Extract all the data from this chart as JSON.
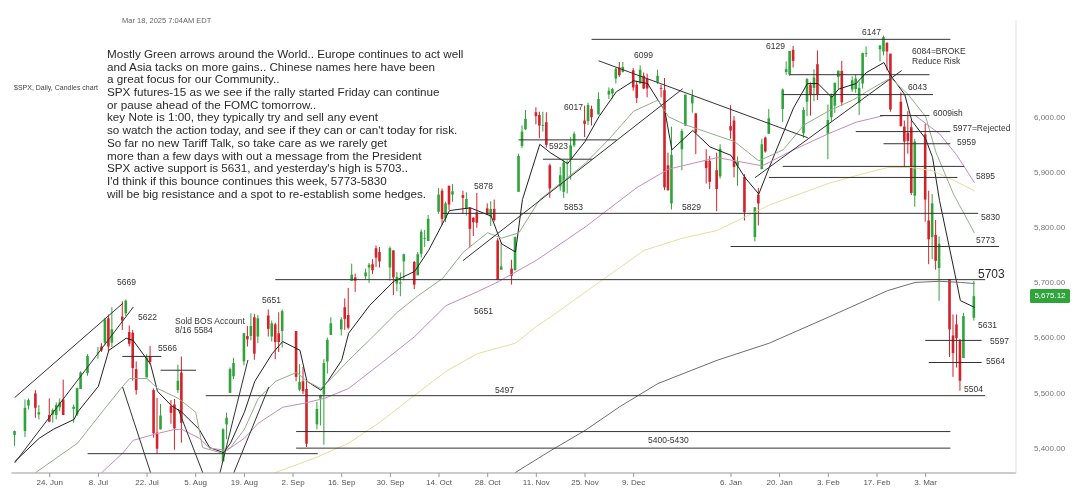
{
  "chart_data": {
    "type": "candlestick",
    "title": "$SPX, Daily, Candles chart",
    "subtitle": "Mar 18, 2025 7:04AM EDT",
    "annotations": [
      "Mostly Green arrows around the World.. Europe continues to act well",
      "and Asia tacks on more gains.. Chinese names here have been",
      "a great focus for our Community..",
      "SPX futures-15 as we see if the rally started Friday can continue",
      "or pause ahead of the FOMC tomorrow..",
      "key Note is 1:00, they typically try and sell any event",
      "so watch the action today, and see if they can or can't today for risk.",
      "So far no new Tariff Talk, so take care as we rarely get",
      "more than a few days with out a message from the President",
      "SPX active support is 5631, and yesterday's high is 5703..",
      "I'd think if this bounce continues this week, 5773-5830",
      "will be big resistance and a spot to re-establish some hedges.",
      "6147",
      "6129",
      "6084=BROKE",
      "Reduce Risk",
      "6043",
      "6009ish",
      "5977=Rejected",
      "5959",
      "5895",
      "5830",
      "5773",
      "5703",
      "5631",
      "5597",
      "5564",
      "5504",
      "6099",
      "6017",
      "5923",
      "5878",
      "5853",
      "5829",
      "5651",
      "5497",
      "5400-5430",
      "5669",
      "5622",
      "5566",
      "Sold BOS Account",
      "8/16 5584",
      "5651",
      "5,675.12"
    ],
    "x": [
      "2024-06-14",
      "2024-06-17",
      "2024-06-18",
      "2024-06-20",
      "2024-06-21",
      "2024-06-24",
      "2024-06-25",
      "2024-06-26",
      "2024-06-27",
      "2024-06-28",
      "2024-07-01",
      "2024-07-02",
      "2024-07-03",
      "2024-07-05",
      "2024-07-08",
      "2024-07-09",
      "2024-07-10",
      "2024-07-11",
      "2024-07-12",
      "2024-07-15",
      "2024-07-16",
      "2024-07-17",
      "2024-07-18",
      "2024-07-19",
      "2024-07-22",
      "2024-07-23",
      "2024-07-24",
      "2024-07-25",
      "2024-07-26",
      "2024-07-29",
      "2024-07-30",
      "2024-07-31",
      "2024-08-01",
      "2024-08-13",
      "2024-08-14",
      "2024-08-15",
      "2024-08-16",
      "2024-08-19",
      "2024-08-20",
      "2024-08-21",
      "2024-08-22",
      "2024-08-23",
      "2024-08-26",
      "2024-08-27",
      "2024-08-28",
      "2024-08-29",
      "2024-08-30",
      "2024-09-03",
      "2024-09-04",
      "2024-09-05",
      "2024-09-06",
      "2024-09-09",
      "2024-09-10",
      "2024-09-11",
      "2024-09-12",
      "2024-09-13",
      "2024-09-16",
      "2024-09-17",
      "2024-09-18",
      "2024-09-19",
      "2024-09-20",
      "2024-09-23",
      "2024-09-24",
      "2024-09-25",
      "2024-09-26",
      "2024-09-27",
      "2024-09-30",
      "2024-10-01",
      "2024-10-02",
      "2024-10-03",
      "2024-10-04",
      "2024-10-07",
      "2024-10-08",
      "2024-10-09",
      "2024-10-10",
      "2024-10-11",
      "2024-10-14",
      "2024-10-15",
      "2024-10-16",
      "2024-10-17",
      "2024-10-18",
      "2024-10-21",
      "2024-10-22",
      "2024-10-23",
      "2024-10-24",
      "2024-10-25",
      "2024-10-28",
      "2024-10-29",
      "2024-10-30",
      "2024-10-31",
      "2024-11-01",
      "2024-11-04",
      "2024-11-05",
      "2024-11-06",
      "2024-11-07",
      "2024-11-08",
      "2024-11-11",
      "2024-11-12",
      "2024-11-13",
      "2024-11-14",
      "2024-11-15",
      "2024-11-18",
      "2024-11-19",
      "2024-11-20",
      "2024-11-21",
      "2024-11-22",
      "2024-11-25",
      "2024-11-26",
      "2024-11-27",
      "2024-11-29",
      "2024-12-02",
      "2024-12-03",
      "2024-12-04",
      "2024-12-05",
      "2024-12-06",
      "2024-12-09",
      "2024-12-10",
      "2024-12-11",
      "2024-12-12",
      "2024-12-13",
      "2024-12-16",
      "2024-12-17",
      "2024-12-18",
      "2024-12-19",
      "2024-12-20",
      "2024-12-23",
      "2024-12-24",
      "2024-12-26",
      "2024-12-27",
      "2024-12-30",
      "2024-12-31",
      "2025-01-02",
      "2025-01-03",
      "2025-01-06",
      "2025-01-07",
      "2025-01-08",
      "2025-01-10",
      "2025-01-13",
      "2025-01-14",
      "2025-01-15",
      "2025-01-16",
      "2025-01-17",
      "2025-01-21",
      "2025-01-22",
      "2025-01-23",
      "2025-01-24",
      "2025-01-27",
      "2025-01-28",
      "2025-01-29",
      "2025-01-30",
      "2025-01-31",
      "2025-02-03",
      "2025-02-04",
      "2025-02-05",
      "2025-02-06",
      "2025-02-07",
      "2025-02-10",
      "2025-02-11",
      "2025-02-12",
      "2025-02-13",
      "2025-02-14",
      "2025-02-18",
      "2025-02-19",
      "2025-02-20",
      "2025-02-21",
      "2025-02-24",
      "2025-02-25",
      "2025-02-26",
      "2025-02-27",
      "2025-02-28",
      "2025-03-03",
      "2025-03-04",
      "2025-03-05",
      "2025-03-06",
      "2025-03-07",
      "2025-03-10",
      "2025-03-11",
      "2025-03-12",
      "2025-03-13",
      "2025-03-14",
      "2025-03-17"
    ],
    "ohlc": [
      [
        5424,
        5432,
        5404,
        5431
      ],
      [
        5431,
        5488,
        5420,
        5473
      ],
      [
        5477,
        5490,
        5470,
        5487
      ],
      [
        5499,
        5505,
        5455,
        5473
      ],
      [
        5461,
        5478,
        5452,
        5465
      ],
      [
        5460,
        5490,
        5447,
        5448
      ],
      [
        5461,
        5472,
        5446,
        5469
      ],
      [
        5460,
        5483,
        5452,
        5478
      ],
      [
        5474,
        5490,
        5467,
        5483
      ],
      [
        5488,
        5524,
        5460,
        5460
      ],
      [
        5471,
        5479,
        5446,
        5475
      ],
      [
        5461,
        5509,
        5458,
        5509
      ],
      [
        5507,
        5539,
        5507,
        5537
      ],
      [
        5536,
        5570,
        5531,
        5567
      ],
      [
        5572,
        5583,
        5562,
        5573
      ],
      [
        5584,
        5590,
        5574,
        5577
      ],
      [
        5591,
        5636,
        5587,
        5633
      ],
      [
        5635,
        5642,
        5576,
        5584
      ],
      [
        5591,
        5655,
        5583,
        5615
      ],
      [
        5638,
        5666,
        5614,
        5631
      ],
      [
        5644,
        5669,
        5639,
        5667
      ],
      [
        5610,
        5622,
        5584,
        5589
      ],
      [
        5609,
        5614,
        5522,
        5545
      ],
      [
        5543,
        5557,
        5497,
        5505
      ],
      [
        5528,
        5570,
        5528,
        5564
      ],
      [
        5566,
        5585,
        5551,
        5556
      ],
      [
        5505,
        5508,
        5419,
        5427
      ],
      [
        5428,
        5491,
        5390,
        5399
      ],
      [
        5434,
        5480,
        5434,
        5459
      ],
      [
        5476,
        5487,
        5444,
        5464
      ],
      [
        5479,
        5489,
        5397,
        5436
      ],
      [
        5505,
        5551,
        5500,
        5522
      ],
      [
        5537,
        5566,
        5410,
        5446
      ],
      [
        5376,
        5436,
        5376,
        5434
      ],
      [
        5443,
        5464,
        5416,
        5455
      ],
      [
        5500,
        5546,
        5500,
        5543
      ],
      [
        5530,
        5563,
        5525,
        5554
      ],
      [
        5557,
        5608,
        5550,
        5608
      ],
      [
        5603,
        5621,
        5584,
        5597
      ],
      [
        5603,
        5644,
        5595,
        5621
      ],
      [
        5637,
        5643,
        5560,
        5571
      ],
      [
        5602,
        5641,
        5590,
        5635
      ],
      [
        5640,
        5651,
        5602,
        5616
      ],
      [
        5602,
        5631,
        5593,
        5626
      ],
      [
        5624,
        5627,
        5561,
        5592
      ],
      [
        5608,
        5646,
        5574,
        5592
      ],
      [
        5612,
        5651,
        5582,
        5648
      ],
      [
        5612,
        5612,
        5521,
        5529
      ],
      [
        5506,
        5552,
        5503,
        5520
      ],
      [
        5521,
        5547,
        5498,
        5503
      ],
      [
        5507,
        5522,
        5402,
        5408
      ],
      [
        5443,
        5484,
        5434,
        5471
      ],
      [
        5490,
        5497,
        5441,
        5496
      ],
      [
        5497,
        5561,
        5406,
        5554
      ],
      [
        5557,
        5600,
        5535,
        5596
      ],
      [
        5605,
        5637,
        5605,
        5626
      ],
      [
        5615,
        5637,
        5604,
        5633
      ],
      [
        5655,
        5671,
        5614,
        5634
      ],
      [
        5641,
        5690,
        5615,
        5618
      ],
      [
        5703,
        5734,
        5703,
        5714
      ],
      [
        5709,
        5716,
        5683,
        5703
      ],
      [
        5711,
        5725,
        5705,
        5718
      ],
      [
        5727,
        5735,
        5699,
        5732
      ],
      [
        5733,
        5742,
        5715,
        5722
      ],
      [
        5762,
        5767,
        5728,
        5745
      ],
      [
        5755,
        5764,
        5727,
        5738
      ],
      [
        5727,
        5765,
        5703,
        5762
      ],
      [
        5758,
        5758,
        5677,
        5709
      ],
      [
        5698,
        5719,
        5684,
        5710
      ],
      [
        5698,
        5718,
        5675,
        5700
      ],
      [
        5738,
        5752,
        5704,
        5751
      ],
      [
        5737,
        5739,
        5688,
        5696
      ],
      [
        5713,
        5755,
        5713,
        5751
      ],
      [
        5752,
        5796,
        5745,
        5792
      ],
      [
        5779,
        5795,
        5764,
        5780
      ],
      [
        5775,
        5822,
        5775,
        5815
      ],
      [
        5828,
        5871,
        5824,
        5859
      ],
      [
        5866,
        5870,
        5804,
        5815
      ],
      [
        5816,
        5846,
        5809,
        5843
      ],
      [
        5875,
        5875,
        5831,
        5841
      ],
      [
        5859,
        5878,
        5846,
        5865
      ],
      [
        5858,
        5866,
        5824,
        5853
      ],
      [
        5833,
        5863,
        5821,
        5851
      ],
      [
        5835,
        5836,
        5763,
        5797
      ],
      [
        5817,
        5818,
        5784,
        5809
      ],
      [
        5827,
        5862,
        5799,
        5808
      ],
      [
        5834,
        5843,
        5822,
        5823
      ],
      [
        5819,
        5847,
        5802,
        5833
      ],
      [
        5833,
        5850,
        5810,
        5813
      ],
      [
        5776,
        5780,
        5704,
        5705
      ],
      [
        5723,
        5772,
        5723,
        5729
      ],
      [
        5725,
        5741,
        5696,
        5712
      ],
      [
        5722,
        5783,
        5722,
        5782
      ],
      [
        5864,
        5933,
        5864,
        5929
      ],
      [
        5947,
        5984,
        5943,
        5973
      ],
      [
        5977,
        6012,
        5976,
        5996
      ],
      [
        6008,
        6017,
        5986,
        6001
      ],
      [
        6003,
        6009,
        5961,
        5984
      ],
      [
        5985,
        6009,
        5973,
        5985
      ],
      [
        5990,
        6008,
        5944,
        5949
      ],
      [
        5912,
        5915,
        5853,
        5870
      ],
      [
        5874,
        5909,
        5866,
        5894
      ],
      [
        5864,
        5921,
        5853,
        5917
      ],
      [
        5917,
        5921,
        5861,
        5917
      ],
      [
        5924,
        5963,
        5886,
        5948
      ],
      [
        5948,
        5973,
        5945,
        5969
      ],
      [
        5993,
        6020,
        5963,
        5987
      ],
      [
        5992,
        6025,
        5985,
        6021
      ],
      [
        6014,
        6020,
        5984,
        5999
      ],
      [
        6004,
        6044,
        6004,
        6032
      ],
      [
        6040,
        6053,
        6032,
        6047
      ],
      [
        6042,
        6052,
        6033,
        6050
      ],
      [
        6069,
        6089,
        6060,
        6087
      ],
      [
        6089,
        6099,
        6072,
        6075
      ],
      [
        6081,
        6099,
        6080,
        6090
      ],
      [
        6084,
        6088,
        6047,
        6053
      ],
      [
        6058,
        6065,
        6025,
        6034
      ],
      [
        6060,
        6093,
        6060,
        6085
      ],
      [
        6074,
        6080,
        6050,
        6051
      ],
      [
        6069,
        6078,
        6035,
        6051
      ],
      [
        6063,
        6085,
        6059,
        6074
      ],
      [
        6052,
        6058,
        6035,
        6051
      ],
      [
        6048,
        6070,
        5867,
        5872
      ],
      [
        5912,
        5935,
        5866,
        5867
      ],
      [
        5843,
        5982,
        5832,
        5931
      ],
      [
        5941,
        5978,
        5903,
        5974
      ],
      [
        5984,
        6040,
        5983,
        6040
      ],
      [
        6024,
        6049,
        6007,
        6037
      ],
      [
        6006,
        6006,
        5932,
        5971
      ],
      [
        5920,
        5941,
        5879,
        5907
      ],
      [
        5920,
        5929,
        5869,
        5882
      ],
      [
        5903,
        5935,
        5829,
        5869
      ],
      [
        5892,
        5950,
        5888,
        5942
      ],
      [
        5983,
        6021,
        5960,
        5975
      ],
      [
        5993,
        6001,
        5890,
        5909
      ],
      [
        5911,
        5928,
        5875,
        5918
      ],
      [
        5891,
        5896,
        5812,
        5827
      ],
      [
        5782,
        5836,
        5774,
        5836
      ],
      [
        5859,
        5871,
        5803,
        5843
      ],
      [
        5905,
        5960,
        5905,
        5950
      ],
      [
        5962,
        5964,
        5935,
        5937
      ],
      [
        5969,
        6014,
        5969,
        5997
      ],
      [
        6014,
        6051,
        5990,
        6049
      ],
      [
        6081,
        6100,
        6076,
        6086
      ],
      [
        6076,
        6119,
        6074,
        6119
      ],
      [
        6121,
        6128,
        6089,
        6101
      ],
      [
        5970,
        6017,
        5962,
        6012
      ],
      [
        6027,
        6070,
        6001,
        6068
      ],
      [
        6058,
        6062,
        6002,
        6039
      ],
      [
        6052,
        6086,
        6028,
        6071
      ],
      [
        6095,
        6120,
        6030,
        6041
      ],
      [
        5969,
        6022,
        5923,
        5994
      ],
      [
        5999,
        6042,
        5991,
        6038
      ],
      [
        6020,
        6062,
        6007,
        6061
      ],
      [
        6072,
        6084,
        6050,
        6083
      ],
      [
        6083,
        6101,
        6020,
        6026
      ],
      [
        6049,
        6073,
        6045,
        6066
      ],
      [
        6050,
        6076,
        6043,
        6069
      ],
      [
        6025,
        6064,
        6003,
        6052
      ],
      [
        6060,
        6116,
        6051,
        6115
      ],
      [
        6115,
        6127,
        6108,
        6115
      ],
      [
        6122,
        6129,
        6100,
        6129
      ],
      [
        6118,
        6147,
        6111,
        6144
      ],
      [
        6134,
        6134,
        6084,
        6118
      ],
      [
        6114,
        6114,
        6009,
        6013
      ],
      [
        6027,
        6044,
        5982,
        5983
      ],
      [
        5982,
        5993,
        5909,
        5955
      ],
      [
        5971,
        6010,
        5933,
        5956
      ],
      [
        5981,
        5994,
        5858,
        5862
      ],
      [
        5857,
        5960,
        5837,
        5955
      ],
      [
        5968,
        5987,
        5810,
        5850
      ],
      [
        5812,
        5866,
        5733,
        5778
      ],
      [
        5782,
        5860,
        5742,
        5843
      ],
      [
        5786,
        5813,
        5723,
        5739
      ],
      [
        5726,
        5783,
        5667,
        5770
      ],
      [
        5706,
        5706,
        5565,
        5615
      ],
      [
        5604,
        5642,
        5529,
        5572
      ],
      [
        5624,
        5642,
        5546,
        5599
      ],
      [
        5594,
        5598,
        5504,
        5522
      ],
      [
        5563,
        5645,
        5563,
        5639
      ],
      [
        5636,
        5703,
        5631,
        5675.12
      ]
    ],
    "colors": [
      "#2ea43a",
      "#2ea43a",
      "#2ea43a",
      "#d3222a",
      "#2ea43a",
      "#d3222a",
      "#2ea43a",
      "#2ea43a",
      "#2ea43a",
      "#d3222a",
      "#2ea43a",
      "#2ea43a",
      "#2ea43a",
      "#2ea43a",
      "#2ea43a",
      "#d3222a",
      "#2ea43a",
      "#d3222a",
      "#2ea43a",
      "#d3222a",
      "#2ea43a",
      "#d3222a",
      "#d3222a",
      "#d3222a",
      "#2ea43a",
      "#d3222a",
      "#d3222a",
      "#d3222a",
      "#2ea43a",
      "#d3222a",
      "#d3222a",
      "#2ea43a",
      "#d3222a",
      "#2ea43a",
      "#2ea43a",
      "#2ea43a",
      "#2ea43a",
      "#2ea43a",
      "#d3222a",
      "#2ea43a",
      "#d3222a",
      "#2ea43a",
      "#d3222a",
      "#2ea43a",
      "#d3222a",
      "#d3222a",
      "#2ea43a",
      "#d3222a",
      "#2ea43a",
      "#d3222a",
      "#d3222a",
      "#2ea43a",
      "#2ea43a",
      "#2ea43a",
      "#2ea43a",
      "#2ea43a",
      "#2ea43a",
      "#d3222a",
      "#d3222a",
      "#2ea43a",
      "#d3222a",
      "#2ea43a",
      "#2ea43a",
      "#d3222a",
      "#d3222a",
      "#d3222a",
      "#2ea43a",
      "#d3222a",
      "#2ea43a",
      "#2ea43a",
      "#2ea43a",
      "#d3222a",
      "#2ea43a",
      "#2ea43a",
      "#2ea43a",
      "#2ea43a",
      "#2ea43a",
      "#d3222a",
      "#2ea43a",
      "#d3222a",
      "#2ea43a",
      "#d3222a",
      "#2ea43a",
      "#d3222a",
      "#d3222a",
      "#d3222a",
      "#d3222a",
      "#2ea43a",
      "#d3222a",
      "#d3222a",
      "#2ea43a",
      "#d3222a",
      "#2ea43a",
      "#2ea43a",
      "#2ea43a",
      "#2ea43a",
      "#d3222a",
      "#d3222a",
      "#2ea43a",
      "#d3222a",
      "#d3222a",
      "#2ea43a",
      "#2ea43a",
      "#2ea43a",
      "#2ea43a",
      "#2ea43a",
      "#d3222a",
      "#2ea43a",
      "#d3222a",
      "#2ea43a",
      "#2ea43a",
      "#2ea43a",
      "#2ea43a",
      "#d3222a",
      "#2ea43a",
      "#d3222a",
      "#d3222a",
      "#2ea43a",
      "#d3222a",
      "#d3222a",
      "#2ea43a",
      "#d3222a",
      "#d3222a",
      "#d3222a",
      "#2ea43a",
      "#2ea43a",
      "#2ea43a",
      "#2ea43a",
      "#d3222a",
      "#d3222a",
      "#d3222a",
      "#d3222a",
      "#2ea43a",
      "#d3222a",
      "#d3222a",
      "#2ea43a",
      "#d3222a",
      "#2ea43a",
      "#d3222a",
      "#2ea43a",
      "#d3222a",
      "#2ea43a",
      "#2ea43a",
      "#2ea43a",
      "#2ea43a",
      "#d3222a",
      "#2ea43a",
      "#2ea43a",
      "#d3222a",
      "#2ea43a",
      "#d3222a",
      "#2ea43a",
      "#2ea43a",
      "#2ea43a",
      "#2ea43a",
      "#d3222a",
      "#2ea43a",
      "#2ea43a",
      "#2ea43a",
      "#2ea43a",
      "#2ea43a",
      "#2ea43a",
      "#2ea43a",
      "#d3222a",
      "#d3222a",
      "#d3222a",
      "#d3222a",
      "#d3222a",
      "#d3222a",
      "#2ea43a",
      "#d3222a",
      "#d3222a",
      "#2ea43a",
      "#d3222a",
      "#2ea43a",
      "#d3222a",
      "#d3222a",
      "#d3222a",
      "#d3222a",
      "#2ea43a",
      "#2ea43a"
    ],
    "series": [
      {
        "type": "line",
        "color": "#222222",
        "x": [
          "2024-06-14",
          "2024-06-21",
          "2024-06-25",
          "2024-07-01",
          "2024-07-02",
          "2024-07-08",
          "2024-07-11",
          "2024-07-16",
          "2024-07-18",
          "2024-07-23",
          "2024-07-25",
          "2024-07-29",
          "2024-08-01",
          "2024-08-06",
          "2024-08-09",
          "2024-08-13",
          "2024-08-15",
          "2024-08-19",
          "2024-08-22",
          "2024-08-27",
          "2024-08-30",
          "2024-09-04",
          "2024-09-06",
          "2024-09-10",
          "2024-09-12",
          "2024-09-16",
          "2024-09-18",
          "2024-09-24",
          "2024-10-01",
          "2024-10-07",
          "2024-10-11",
          "2024-10-17",
          "2024-10-23",
          "2024-10-29",
          "2024-11-01",
          "2024-11-05",
          "2024-11-07",
          "2024-11-12",
          "2024-11-15",
          "2024-11-20",
          "2024-11-25",
          "2024-11-29",
          "2024-12-04",
          "2024-12-09",
          "2024-12-13",
          "2024-12-18",
          "2024-12-20",
          "2024-12-26",
          "2024-12-31",
          "2025-01-06",
          "2025-01-10",
          "2025-01-14",
          "2025-01-17",
          "2025-01-24",
          "2025-01-28",
          "2025-01-31",
          "2025-02-04",
          "2025-02-06",
          "2025-02-11",
          "2025-02-14",
          "2025-02-19",
          "2025-02-21",
          "2025-02-25",
          "2025-02-27",
          "2025-03-03",
          "2025-03-05",
          "2025-03-07",
          "2025-03-10",
          "2025-03-12",
          "2025-03-13",
          "2025-03-17"
        ],
        "values": [
          5376,
          5418,
          5434,
          5452,
          5465,
          5512,
          5577,
          5599,
          5595,
          5552,
          5503,
          5477,
          5465,
          5434,
          5401,
          5392,
          5409,
          5465,
          5521,
          5571,
          5593,
          5577,
          5521,
          5505,
          5521,
          5559,
          5608,
          5658,
          5702,
          5720,
          5758,
          5830,
          5835,
          5820,
          5770,
          5755,
          5850,
          5950,
          5935,
          5915,
          5955,
          6000,
          6045,
          6065,
          6060,
          6010,
          5940,
          5975,
          5945,
          5930,
          5890,
          5860,
          5908,
          6016,
          6060,
          6060,
          6035,
          6050,
          6060,
          6080,
          6098,
          6074,
          6040,
          5993,
          5960,
          5926,
          5848,
          5758,
          5698,
          5667,
          5655
        ]
      },
      {
        "type": "line",
        "color": "#93ad8c",
        "x": [
          "2024-06-20",
          "2024-07-02",
          "2024-07-09",
          "2024-07-15",
          "2024-07-17",
          "2024-07-22",
          "2024-07-25",
          "2024-07-31",
          "2024-08-05",
          "2024-08-07",
          "2024-08-12",
          "2024-08-15",
          "2024-08-19",
          "2024-08-23",
          "2024-08-28",
          "2024-09-03",
          "2024-09-06",
          "2024-09-10",
          "2024-09-13",
          "2024-09-18",
          "2024-09-25",
          "2024-10-02",
          "2024-10-08",
          "2024-10-15",
          "2024-10-21",
          "2024-10-28",
          "2024-11-01",
          "2024-11-06",
          "2024-11-12",
          "2024-11-18",
          "2024-11-25",
          "2024-12-02",
          "2024-12-09",
          "2024-12-16",
          "2024-12-19",
          "2024-12-24",
          "2024-12-31",
          "2025-01-07",
          "2025-01-14",
          "2025-01-21",
          "2025-01-27",
          "2025-02-03",
          "2025-02-10",
          "2025-02-18",
          "2025-02-21",
          "2025-02-26",
          "2025-03-03",
          "2025-03-06",
          "2025-03-11",
          "2025-03-17"
        ],
        "values": [
          5356,
          5409,
          5465,
          5512,
          5526,
          5526,
          5508,
          5490,
          5465,
          5401,
          5392,
          5401,
          5434,
          5490,
          5521,
          5537,
          5521,
          5508,
          5526,
          5559,
          5602,
          5646,
          5676,
          5707,
          5755,
          5790,
          5780,
          5790,
          5850,
          5880,
          5915,
          5960,
          6010,
          6030,
          6000,
          5985,
          5970,
          5955,
          5920,
          5940,
          5985,
          6010,
          6030,
          6060,
          6070,
          6040,
          6000,
          5935,
          5860,
          5790
        ]
      },
      {
        "type": "line",
        "color": "#c98ab8",
        "x": [
          "2024-07-09",
          "2024-07-15",
          "2024-07-18",
          "2024-07-24",
          "2024-07-30",
          "2024-08-01",
          "2024-08-06",
          "2024-08-09",
          "2024-08-14",
          "2024-08-19",
          "2024-08-23",
          "2024-08-30",
          "2024-09-05",
          "2024-09-11",
          "2024-09-18",
          "2024-09-27",
          "2024-10-07",
          "2024-10-16",
          "2024-10-25",
          "2024-10-31",
          "2024-11-11",
          "2024-11-25",
          "2024-12-10",
          "2024-12-19",
          "2025-01-02",
          "2025-01-15",
          "2025-01-24",
          "2025-02-03",
          "2025-02-11",
          "2025-02-19",
          "2025-02-28",
          "2025-03-07",
          "2025-03-12",
          "2025-03-17"
        ],
        "values": [
          5356,
          5391,
          5414,
          5425,
          5434,
          5434,
          5418,
          5400,
          5396,
          5418,
          5445,
          5474,
          5481,
          5490,
          5508,
          5552,
          5602,
          5658,
          5683,
          5701,
          5740,
          5800,
          5872,
          5905,
          5926,
          5911,
          5940,
          5969,
          5990,
          6002,
          6002,
          5969,
          5930,
          5881
        ]
      },
      {
        "type": "line",
        "color": "#e3df9c",
        "x": [
          "2024-08-28",
          "2024-09-09",
          "2024-09-18",
          "2024-09-27",
          "2024-10-07",
          "2024-10-16",
          "2024-10-25",
          "2024-11-05",
          "2024-11-11",
          "2024-11-15",
          "2024-11-29",
          "2024-12-12",
          "2024-12-23",
          "2025-01-02",
          "2025-01-17",
          "2025-02-03",
          "2025-02-12",
          "2025-02-20",
          "2025-02-27",
          "2025-03-05",
          "2025-03-11",
          "2025-03-17"
        ],
        "values": [
          5356,
          5384,
          5409,
          5447,
          5496,
          5539,
          5571,
          5590,
          5620,
          5637,
          5700,
          5758,
          5780,
          5794,
          5840,
          5879,
          5895,
          5908,
          5908,
          5902,
          5885,
          5866
        ]
      },
      {
        "type": "line",
        "color": "#6e6e6e",
        "x": [
          "2024-11-05",
          "2024-11-15",
          "2024-11-25",
          "2024-12-05",
          "2024-12-16",
          "2025-01-02",
          "2025-01-17",
          "2025-02-03",
          "2025-02-20",
          "2025-02-28",
          "2025-03-07",
          "2025-03-13",
          "2025-03-17"
        ],
        "values": [
          5356,
          5395,
          5432,
          5475,
          5517,
          5559,
          5590,
          5637,
          5685,
          5700,
          5702,
          5700,
          5698
        ]
      },
      {
        "type": "line",
        "color": "#333333",
        "x": [
          "2024-06-14",
          "2024-07-15"
        ],
        "values": [
          5492,
          5662
        ]
      },
      {
        "type": "line",
        "color": "#333333",
        "x": [
          "2024-06-14",
          "2024-07-18"
        ],
        "values": [
          5374,
          5655
        ]
      },
      {
        "type": "line",
        "color": "#333333",
        "x": [
          "2024-07-15",
          "2024-07-23"
        ],
        "values": [
          5510,
          5356
        ]
      },
      {
        "type": "line",
        "color": "#333333",
        "x": [
          "2024-07-31",
          "2024-08-07"
        ],
        "values": [
          5470,
          5356
        ]
      },
      {
        "type": "line",
        "color": "#333333",
        "x": [
          "2024-08-12",
          "2024-08-20"
        ],
        "values": [
          5356,
          5559
        ]
      },
      {
        "type": "line",
        "color": "#333333",
        "x": [
          "2024-08-16",
          "2024-08-26"
        ],
        "values": [
          5356,
          5510
        ]
      },
      {
        "type": "line",
        "color": "#333333",
        "x": [
          "2024-10-21",
          "2024-12-23"
        ],
        "values": [
          5740,
          6050
        ]
      },
      {
        "type": "line",
        "color": "#333333",
        "x": [
          "2024-11-29",
          "2025-01-28"
        ],
        "values": [
          6101,
          5962
        ]
      },
      {
        "type": "line",
        "color": "#333333",
        "x": [
          "2025-01-13",
          "2025-02-24"
        ],
        "values": [
          5890,
          6083
        ]
      },
      {
        "type": "line",
        "color": "#333333",
        "x": [
          "2024-11-27",
          "2025-03-10"
        ],
        "values": [
          6140,
          6140
        ]
      },
      {
        "type": "line",
        "color": "#333333",
        "x": [
          "2025-01-23",
          "2025-03-04"
        ],
        "values": [
          6076,
          6076
        ]
      },
      {
        "type": "line",
        "color": "#333333",
        "x": [
          "2025-01-21",
          "2025-03-05"
        ],
        "values": [
          6040,
          6040
        ]
      },
      {
        "type": "line",
        "color": "#333333",
        "x": [
          "2025-02-18",
          "2025-03-04"
        ],
        "values": [
          6002,
          6002
        ]
      },
      {
        "type": "line",
        "color": "#333333",
        "x": [
          "2025-02-11",
          "2025-03-10"
        ],
        "values": [
          5973,
          5973
        ]
      },
      {
        "type": "line",
        "color": "#333333",
        "x": [
          "2025-02-19",
          "2025-03-10"
        ],
        "values": [
          5951,
          5951
        ]
      },
      {
        "type": "line",
        "color": "#333333",
        "x": [
          "2025-01-21",
          "2025-03-14"
        ],
        "values": [
          5910,
          5910
        ]
      },
      {
        "type": "line",
        "color": "#333333",
        "x": [
          "2025-01-17",
          "2025-03-12"
        ],
        "values": [
          5890,
          5890
        ]
      },
      {
        "type": "line",
        "color": "#333333",
        "x": [
          "2024-10-15",
          "2025-03-18"
        ],
        "values": [
          5825,
          5825
        ]
      },
      {
        "type": "line",
        "color": "#333333",
        "x": [
          "2025-01-06",
          "2025-03-24"
        ],
        "values": [
          5765,
          5765
        ]
      },
      {
        "type": "line",
        "color": "#333333",
        "x": [
          "2024-08-28",
          "2025-03-20"
        ],
        "values": [
          5705,
          5705
        ]
      },
      {
        "type": "line",
        "color": "#333333",
        "x": [
          "2025-03-03",
          "2025-03-19"
        ],
        "values": [
          5595,
          5595
        ]
      },
      {
        "type": "line",
        "color": "#333333",
        "x": [
          "2025-03-04",
          "2025-03-19"
        ],
        "values": [
          5555,
          5555
        ]
      },
      {
        "type": "line",
        "color": "#333333",
        "x": [
          "2024-08-08",
          "2025-03-20"
        ],
        "values": [
          5495,
          5495
        ]
      },
      {
        "type": "line",
        "color": "#333333",
        "x": [
          "2024-09-03",
          "2025-03-10"
        ],
        "values": [
          5430,
          5430
        ]
      },
      {
        "type": "line",
        "color": "#333333",
        "x": [
          "2024-09-03",
          "2025-03-10"
        ],
        "values": [
          5400,
          5400
        ]
      },
      {
        "type": "line",
        "color": "#333333",
        "x": [
          "2024-07-05",
          "2024-09-09"
        ],
        "values": [
          5390,
          5390
        ]
      },
      {
        "type": "line",
        "color": "#333333",
        "x": [
          "2024-07-15",
          "2024-07-26"
        ],
        "values": [
          5566,
          5566
        ]
      },
      {
        "type": "line",
        "color": "#333333",
        "x": [
          "2024-07-26",
          "2024-08-05"
        ],
        "values": [
          5541,
          5541
        ]
      },
      {
        "type": "line",
        "color": "#333333",
        "x": [
          "2024-11-06",
          "2024-12-04"
        ],
        "values": [
          5958,
          5958
        ]
      },
      {
        "type": "line",
        "color": "#333333",
        "x": [
          "2024-11-13",
          "2024-11-27"
        ],
        "values": [
          5923,
          5923
        ]
      }
    ],
    "xlim": [
      "2024-06-13",
      "2025-03-29"
    ],
    "xticks": [
      {
        "value": "2024-06-24",
        "label": "24. Jun"
      },
      {
        "value": "2024-07-08",
        "label": "8. Jul"
      },
      {
        "value": "2024-07-22",
        "label": "22. Jul"
      },
      {
        "value": "2024-08-05",
        "label": "5. Aug"
      },
      {
        "value": "2024-08-19",
        "label": "19. Aug"
      },
      {
        "value": "2024-09-02",
        "label": "2. Sep"
      },
      {
        "value": "2024-09-16",
        "label": "16. Sep"
      },
      {
        "value": "2024-09-30",
        "label": "30. Sep"
      },
      {
        "value": "2024-10-14",
        "label": "14. Oct"
      },
      {
        "value": "2024-10-28",
        "label": "28. Oct"
      },
      {
        "value": "2024-11-11",
        "label": "11. Nov"
      },
      {
        "value": "2024-11-25",
        "label": "25. Nov"
      },
      {
        "value": "2024-12-09",
        "label": "9. Dec"
      },
      {
        "value": "2025-01-06",
        "label": "6. Jan"
      },
      {
        "value": "2025-01-20",
        "label": "20. Jan"
      },
      {
        "value": "2025-02-03",
        "label": "3. Feb"
      },
      {
        "value": "2025-02-17",
        "label": "17. Feb"
      },
      {
        "value": "2025-03-03",
        "label": "3. Mar"
      }
    ],
    "ylim": [
      5355,
      6175
    ],
    "yticks": [
      {
        "value": 5400,
        "label": "5,400.00"
      },
      {
        "value": 5500,
        "label": "5,500.00"
      },
      {
        "value": 5600,
        "label": "5,600.00"
      },
      {
        "value": 5700,
        "label": "5,700.00"
      },
      {
        "value": 5800,
        "label": "5,800.00"
      },
      {
        "value": 5900,
        "label": "5,900.00"
      },
      {
        "value": 6000,
        "label": "6,000.00"
      }
    ]
  }
}
